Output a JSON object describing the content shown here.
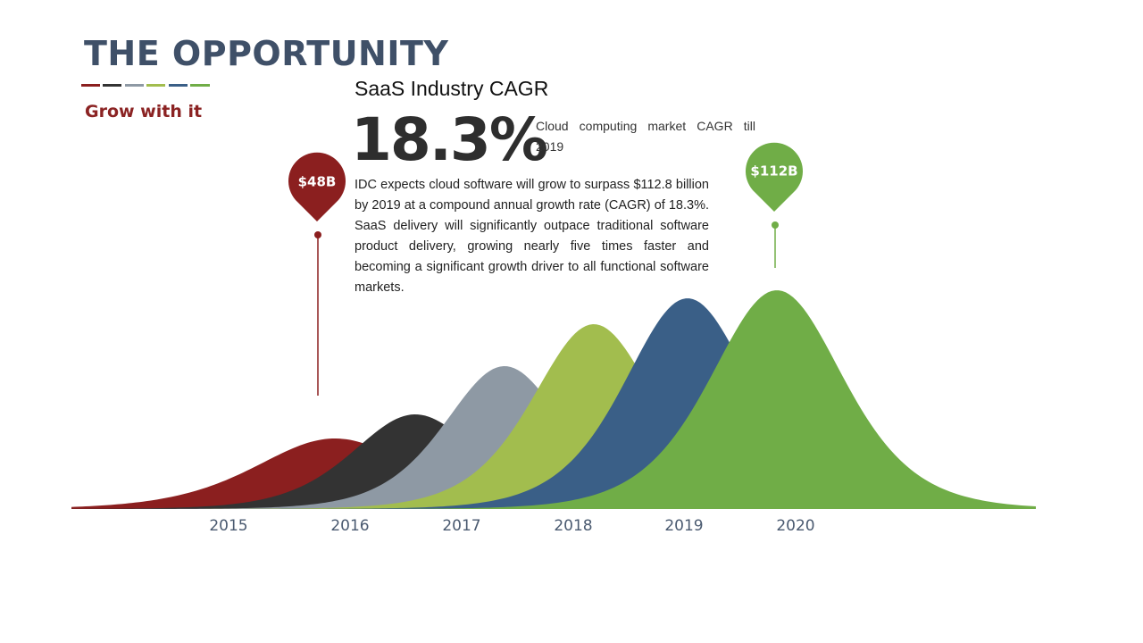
{
  "title": "THE OPPORTUNITY",
  "subtitle": "Grow with it",
  "heading": "SaaS Industry CAGR",
  "stat": "18.3%",
  "stat_caption": "Cloud computing market CAGR till 2019",
  "body": "IDC expects cloud software will grow to surpass $112.8 billion by 2019 at a compound annual growth rate (CAGR) of 18.3%. SaaS delivery will significantly outpace traditional software product delivery, growing nearly five times faster and becoming a significant growth driver to all functional software markets.",
  "years": [
    "2015",
    "2016",
    "2017",
    "2018",
    "2019",
    "2020"
  ],
  "pins": [
    "$48B",
    "$112B"
  ]
}
